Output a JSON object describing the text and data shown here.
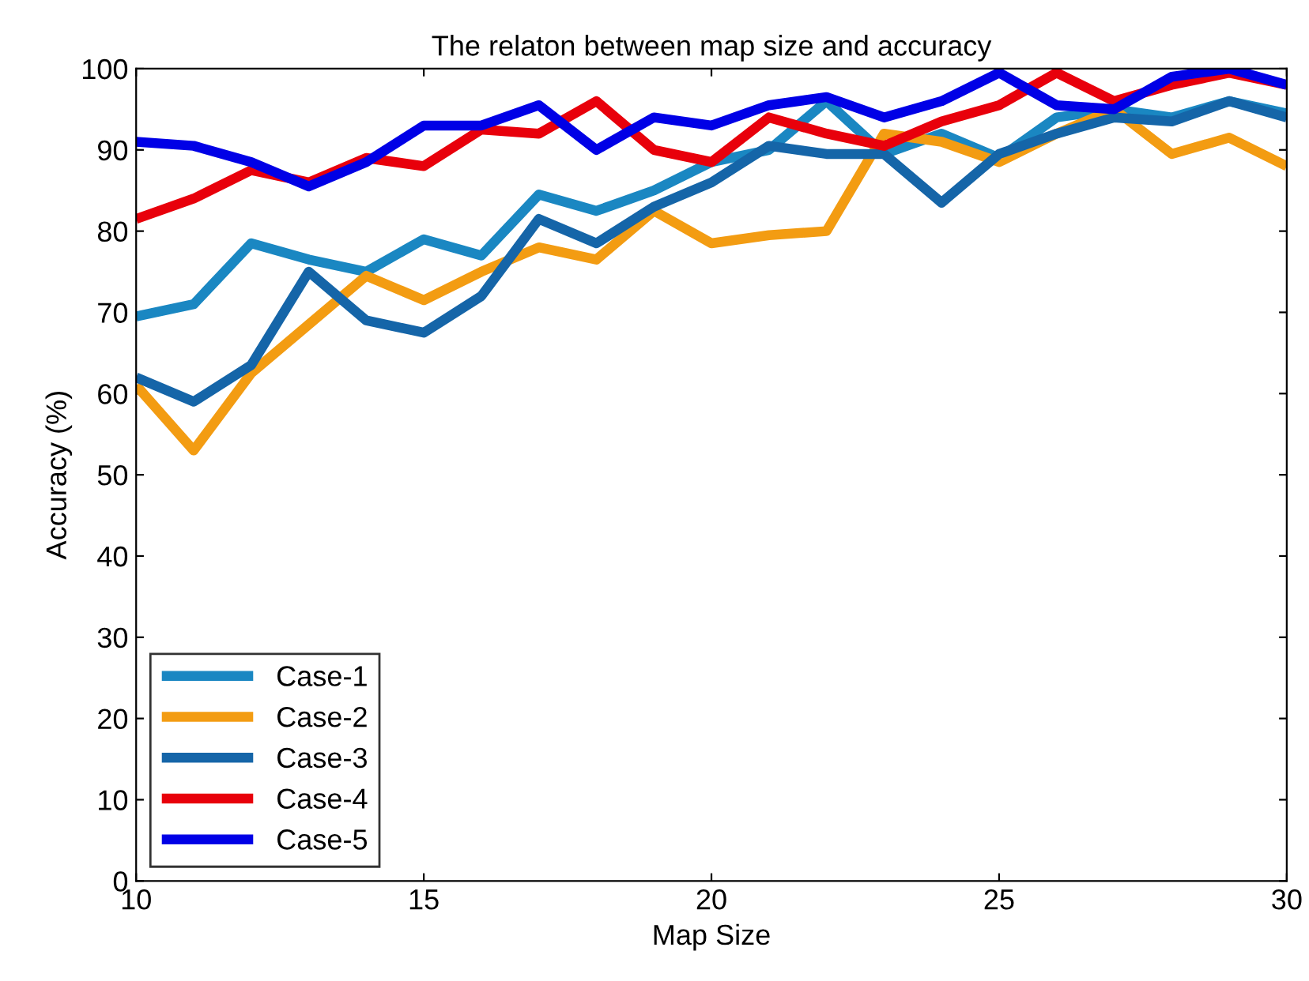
{
  "chart_data": {
    "type": "line",
    "title": "The relaton between map size and accuracy",
    "xlabel": "Map Size",
    "ylabel": "Accuracy (%)",
    "x": [
      10,
      11,
      12,
      13,
      14,
      15,
      16,
      17,
      18,
      19,
      20,
      21,
      22,
      23,
      24,
      25,
      26,
      27,
      28,
      29,
      30
    ],
    "series": [
      {
        "name": "Case-1",
        "color": "#1a87c2",
        "values": [
          69.5,
          71,
          78.5,
          76.5,
          75,
          79,
          77,
          84.5,
          82.5,
          85,
          88.5,
          90,
          96,
          89.5,
          92,
          89,
          94,
          95,
          94,
          96,
          94.5
        ]
      },
      {
        "name": "Case-2",
        "color": "#f39c12",
        "values": [
          61,
          53,
          62.5,
          68.5,
          74.5,
          71.5,
          75,
          78,
          76.5,
          82.5,
          78.5,
          79.5,
          80,
          92,
          91,
          88.5,
          92,
          95,
          89.5,
          91.5,
          88
        ]
      },
      {
        "name": "Case-3",
        "color": "#1565a8",
        "values": [
          62,
          59,
          63.5,
          75,
          69,
          67.5,
          72,
          81.5,
          78.5,
          83,
          86,
          90.5,
          89.5,
          89.5,
          83.5,
          89.5,
          92,
          94,
          93.5,
          96,
          94
        ]
      },
      {
        "name": "Case-4",
        "color": "#e8000b",
        "values": [
          81.5,
          84,
          87.5,
          86,
          89,
          88,
          92.5,
          92,
          96,
          90,
          88.5,
          94,
          92,
          90.5,
          93.5,
          95.5,
          99.5,
          96,
          98,
          99.5,
          98
        ]
      },
      {
        "name": "Case-5",
        "color": "#0000e6",
        "values": [
          91,
          90.5,
          88.5,
          85.5,
          88.5,
          93,
          93,
          95.5,
          90,
          94,
          93,
          95.5,
          96.5,
          94,
          96,
          99.5,
          95.5,
          95,
          99,
          100,
          98
        ]
      }
    ],
    "xlim": [
      10,
      30
    ],
    "xticks": [
      10,
      15,
      20,
      25,
      30
    ],
    "ylim": [
      0,
      100
    ],
    "yticks": [
      0,
      10,
      20,
      30,
      40,
      50,
      60,
      70,
      80,
      90,
      100
    ],
    "grid": false,
    "legend": "bottom left",
    "marker": "none",
    "line_style": "solid"
  }
}
